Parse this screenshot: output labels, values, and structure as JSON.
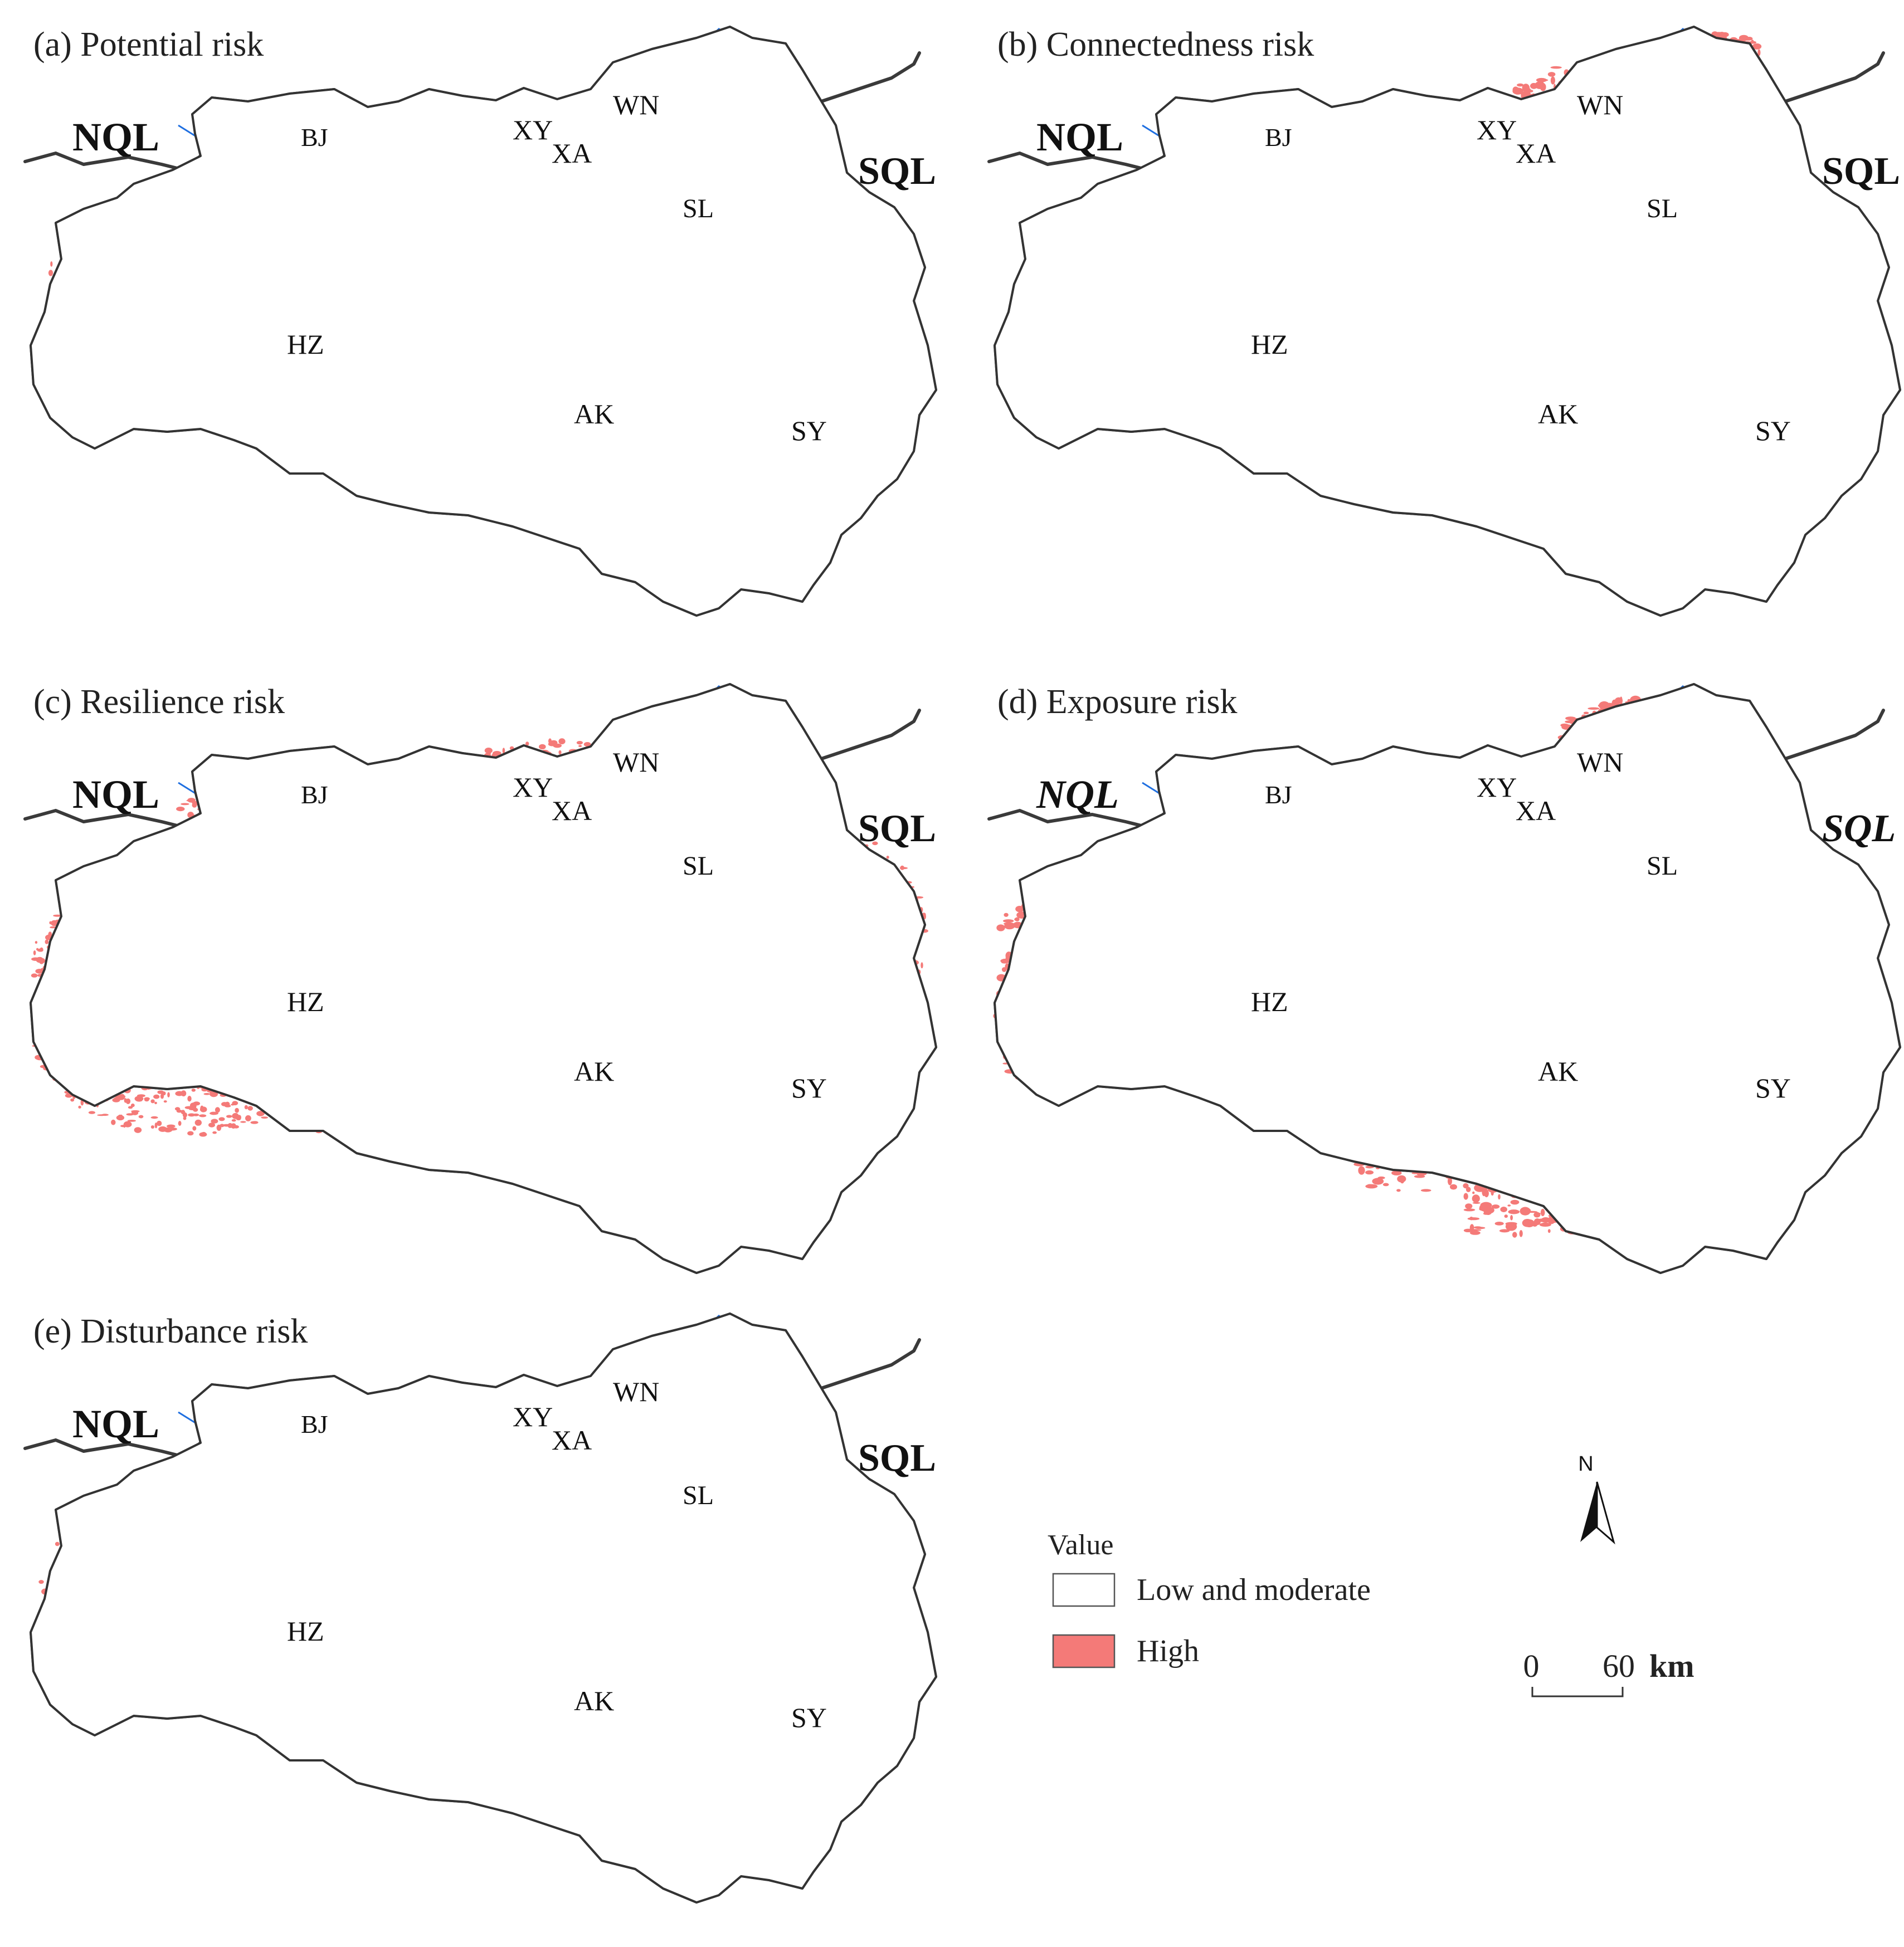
{
  "panels": [
    {
      "id": "a",
      "title": "(a) Potential risk",
      "density": "low",
      "labels": {
        "NQL": "NQL",
        "SQL": "SQL",
        "BJ": "BJ",
        "XY": "XY",
        "XA": "XA",
        "WN": "WN",
        "SL": "SL",
        "HZ": "HZ",
        "AK": "AK",
        "SY": "SY"
      }
    },
    {
      "id": "b",
      "title": "(b) Connectedness risk",
      "density": "north",
      "labels": {
        "NQL": "NQL",
        "SQL": "SQL",
        "BJ": "BJ",
        "XY": "XY",
        "XA": "XA",
        "WN": "WN",
        "SL": "SL",
        "HZ": "HZ",
        "AK": "AK",
        "SY": "SY"
      }
    },
    {
      "id": "c",
      "title": "(c) Resilience risk",
      "density": "west",
      "labels": {
        "NQL": "NQL",
        "SQL": "SQL",
        "BJ": "BJ",
        "XY": "XY",
        "XA": "XA",
        "WN": "WN",
        "SL": "SL",
        "HZ": "HZ",
        "AK": "AK",
        "SY": "SY"
      }
    },
    {
      "id": "d",
      "title": "(d) Exposure risk",
      "density": "high",
      "labels": {
        "NQL": "NQL",
        "SQL": "SQL",
        "BJ": "BJ",
        "XY": "XY",
        "XA": "XA",
        "WN": "WN",
        "SL": "SL",
        "HZ": "HZ",
        "AK": "AK",
        "SY": "SY"
      }
    },
    {
      "id": "e",
      "title": "(e) Disturbance risk",
      "density": "medium",
      "labels": {
        "NQL": "NQL",
        "SQL": "SQL",
        "BJ": "BJ",
        "XY": "XY",
        "XA": "XA",
        "WN": "WN",
        "SL": "SL",
        "HZ": "HZ",
        "AK": "AK",
        "SY": "SY"
      }
    }
  ],
  "legend": {
    "title": "Value",
    "items": [
      {
        "label": "Low and moderate",
        "color": "#ffffff"
      },
      {
        "label": "High",
        "color": "#f47a78"
      }
    ]
  },
  "north_arrow": {
    "label": "N"
  },
  "scale_bar": {
    "start": "0",
    "end": "60",
    "unit": "km"
  },
  "colors": {
    "high": "#f47a78",
    "water": "#1f6fe0",
    "border": "#3a3a3a",
    "district": "#9c9c9c",
    "divide": "#3a3a3a"
  }
}
